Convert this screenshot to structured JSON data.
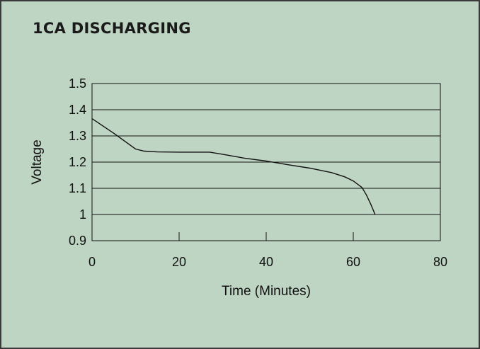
{
  "chart_data": {
    "type": "line",
    "title": "1CA DISCHARGING",
    "xlabel": "Time (Minutes)",
    "ylabel": "Voltage",
    "xlim": [
      0,
      80
    ],
    "ylim": [
      0.9,
      1.5
    ],
    "x_ticks": [
      "0",
      "20",
      "40",
      "60",
      "80"
    ],
    "y_ticks": [
      "1.5",
      "1.4",
      "1.3",
      "1.2",
      "1.1",
      "1",
      "0.9"
    ],
    "y_tick_values": [
      1.5,
      1.4,
      1.3,
      1.2,
      1.1,
      1.0,
      0.9
    ],
    "x_tick_values": [
      0,
      20,
      40,
      60,
      80
    ],
    "grid": "horizontal",
    "series": [
      {
        "x": [
          0,
          5,
          10,
          12,
          15,
          20,
          25,
          27,
          30,
          35,
          40,
          45,
          50,
          55,
          58,
          60,
          62,
          63,
          64,
          65
        ],
        "y": [
          1.366,
          1.31,
          1.25,
          1.242,
          1.239,
          1.238,
          1.238,
          1.238,
          1.23,
          1.215,
          1.204,
          1.19,
          1.177,
          1.16,
          1.144,
          1.128,
          1.103,
          1.075,
          1.04,
          1.0
        ]
      }
    ]
  },
  "colors": {
    "background": "#bfd5c3",
    "line": "#111111"
  }
}
